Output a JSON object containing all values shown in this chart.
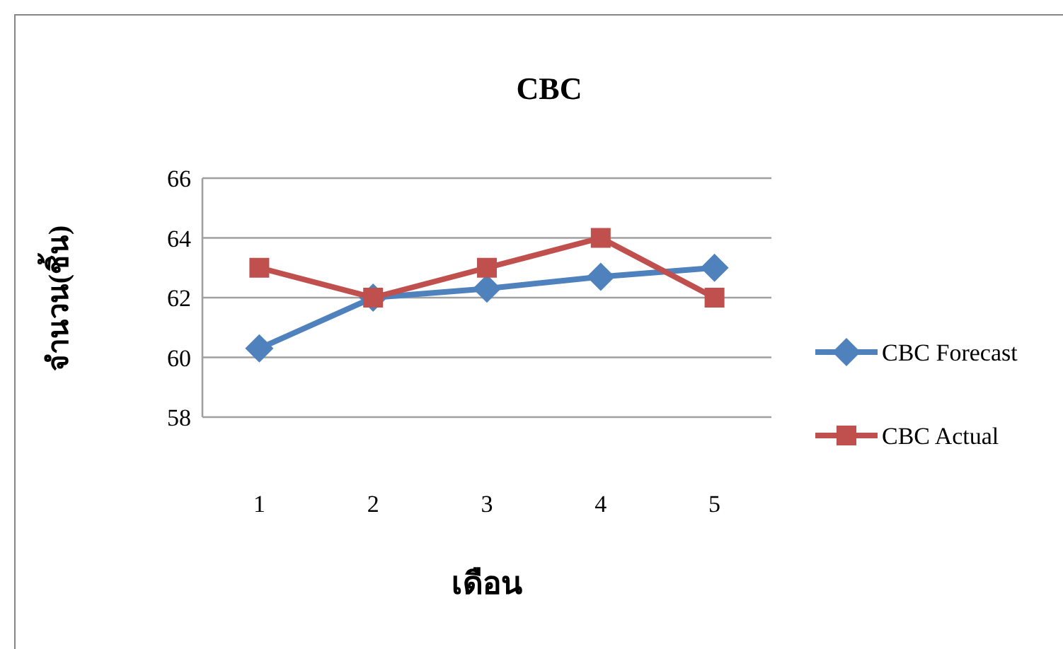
{
  "chart_data": {
    "type": "line",
    "title": "CBC",
    "xlabel": "เดือน",
    "ylabel": "จำนวน(ชิ้น)",
    "categories": [
      "1",
      "2",
      "3",
      "4",
      "5"
    ],
    "series": [
      {
        "name": "CBC Forecast",
        "color": "#4f81bd",
        "marker": "diamond",
        "values": [
          60.3,
          62,
          62.3,
          62.7,
          63
        ]
      },
      {
        "name": "CBC Actual",
        "color": "#c0504d",
        "marker": "square",
        "values": [
          63,
          62,
          63,
          64,
          62
        ]
      }
    ],
    "ylim": [
      58,
      66
    ],
    "yticks": [
      58,
      60,
      62,
      64,
      66
    ],
    "grid": "y",
    "legend": "right",
    "line_style": "solid"
  }
}
